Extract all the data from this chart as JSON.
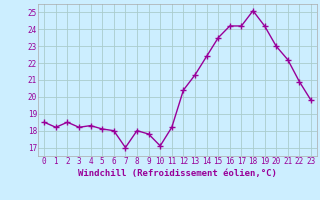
{
  "x": [
    0,
    1,
    2,
    3,
    4,
    5,
    6,
    7,
    8,
    9,
    10,
    11,
    12,
    13,
    14,
    15,
    16,
    17,
    18,
    19,
    20,
    21,
    22,
    23
  ],
  "y": [
    18.5,
    18.2,
    18.5,
    18.2,
    18.3,
    18.1,
    18.0,
    17.0,
    18.0,
    17.8,
    17.1,
    18.2,
    20.4,
    21.3,
    22.4,
    23.5,
    24.2,
    24.2,
    25.1,
    24.2,
    23.0,
    22.2,
    20.9,
    19.8
  ],
  "line_color": "#990099",
  "marker": "+",
  "marker_size": 4,
  "bg_color": "#cceeff",
  "grid_color": "#aacccc",
  "xlabel": "Windchill (Refroidissement éolien,°C)",
  "ylim": [
    16.5,
    25.5
  ],
  "xlim": [
    -0.5,
    23.5
  ],
  "yticks": [
    17,
    18,
    19,
    20,
    21,
    22,
    23,
    24,
    25
  ],
  "xticks": [
    0,
    1,
    2,
    3,
    4,
    5,
    6,
    7,
    8,
    9,
    10,
    11,
    12,
    13,
    14,
    15,
    16,
    17,
    18,
    19,
    20,
    21,
    22,
    23
  ],
  "tick_label_color": "#990099",
  "label_color": "#990099",
  "tick_fontsize": 5.5,
  "xlabel_fontsize": 6.5,
  "linewidth": 1.0,
  "border_color": "#aaaaaa"
}
